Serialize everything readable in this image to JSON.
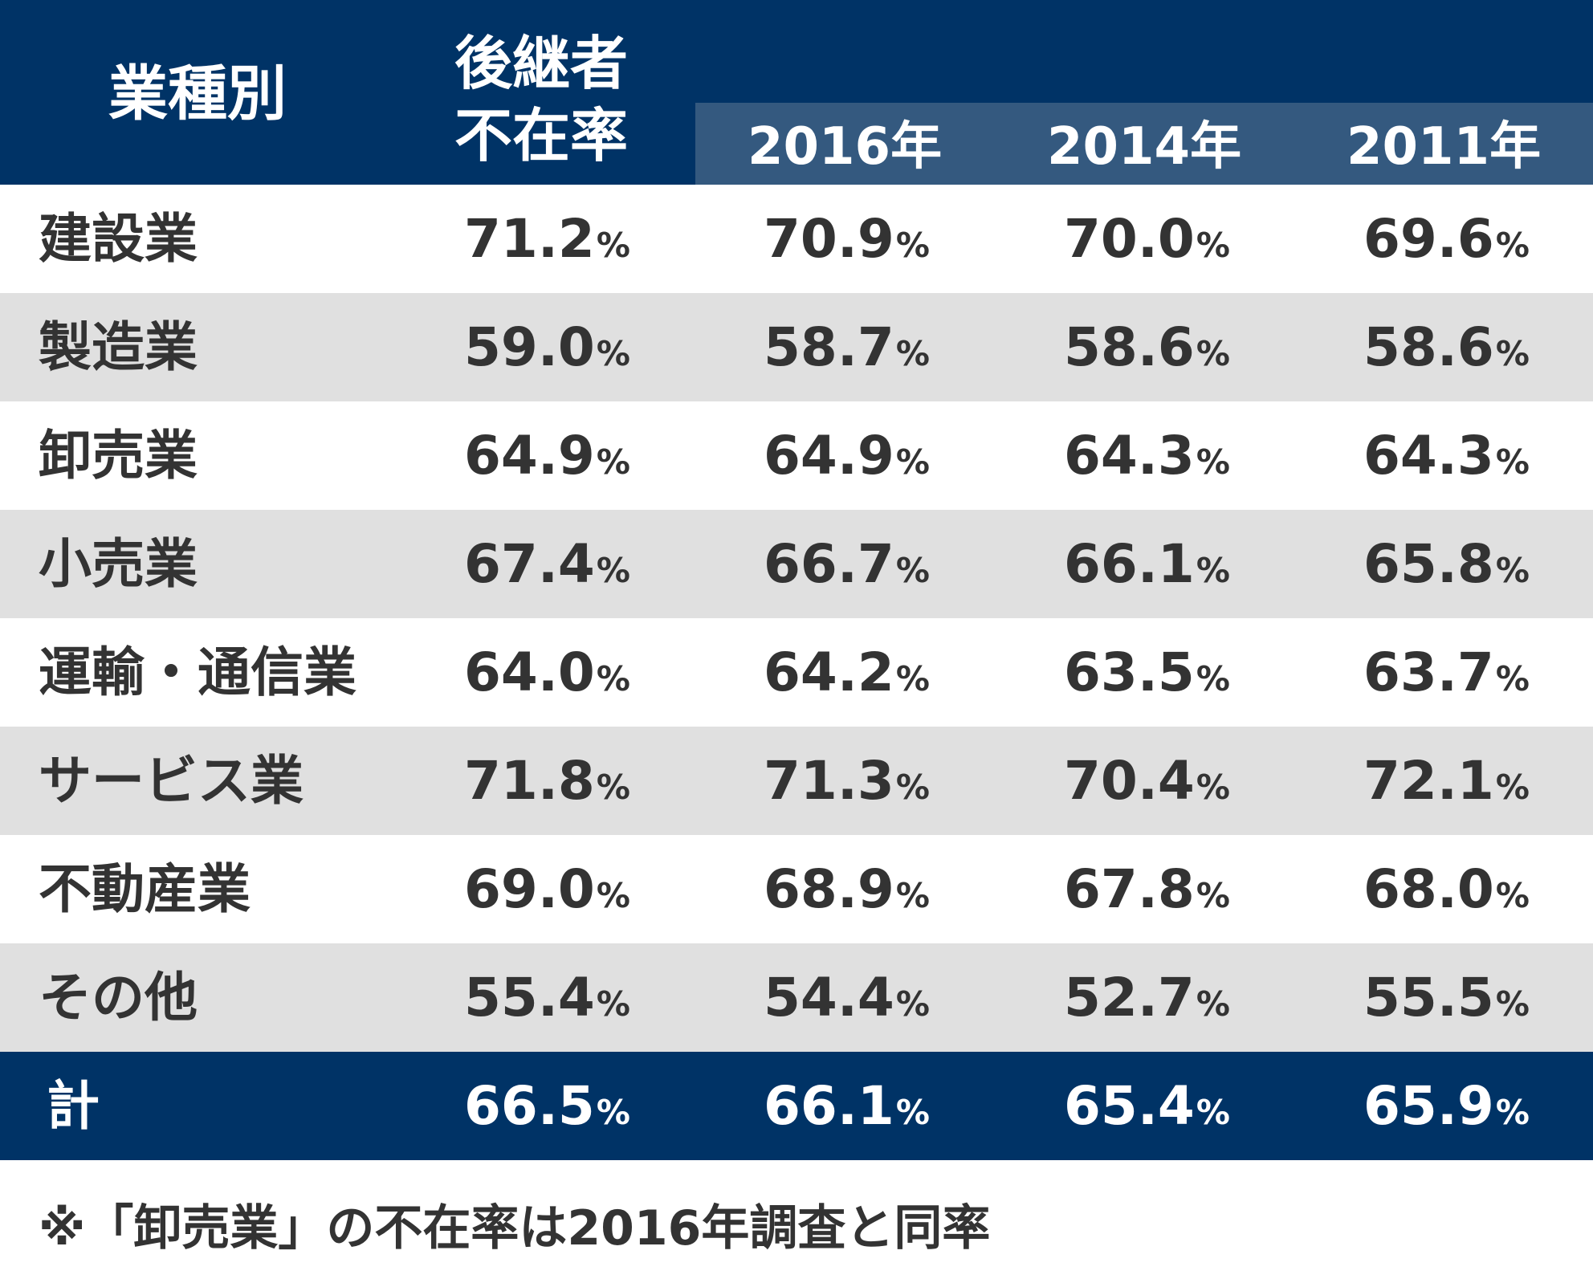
{
  "chart_data": {
    "type": "table",
    "header": {
      "category": "業種別",
      "rate_line1": "後継者",
      "rate_line2": "不在率",
      "years": [
        "2016年",
        "2014年",
        "2011年"
      ]
    },
    "unit": "%",
    "rows": [
      {
        "category": "建設業",
        "values": [
          "71.2",
          "70.9",
          "70.0",
          "69.6"
        ]
      },
      {
        "category": "製造業",
        "values": [
          "59.0",
          "58.7",
          "58.6",
          "58.6"
        ]
      },
      {
        "category": "卸売業",
        "values": [
          "64.9",
          "64.9",
          "64.3",
          "64.3"
        ]
      },
      {
        "category": "小売業",
        "values": [
          "67.4",
          "66.7",
          "66.1",
          "65.8"
        ]
      },
      {
        "category": "運輸・通信業",
        "values": [
          "64.0",
          "64.2",
          "63.5",
          "63.7"
        ]
      },
      {
        "category": "サービス業",
        "values": [
          "71.8",
          "71.3",
          "70.4",
          "72.1"
        ]
      },
      {
        "category": "不動産業",
        "values": [
          "69.0",
          "68.9",
          "67.8",
          "68.0"
        ]
      },
      {
        "category": "その他",
        "values": [
          "55.4",
          "54.4",
          "52.7",
          "55.5"
        ]
      }
    ],
    "total": {
      "category": "計",
      "values": [
        "66.5",
        "66.1",
        "65.4",
        "65.9"
      ]
    },
    "note": "※「卸売業」の不在率は2016年調査と同率"
  },
  "colors": {
    "header_bg": "#003366",
    "year_band_bg": "#34597f",
    "row_alt_bg": "#e0e0e0",
    "text": "#333333"
  }
}
